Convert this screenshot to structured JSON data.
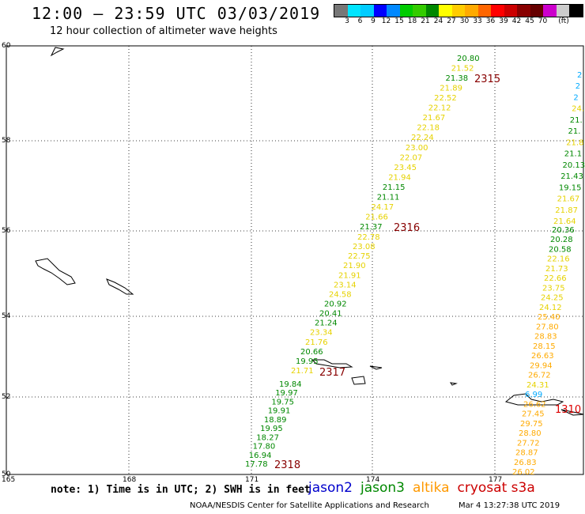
{
  "header": {
    "title": "12:00 – 23:59 UTC 03/03/2019",
    "subtitle": "12 hour collection of altimeter wave heights"
  },
  "legend": {
    "colors": [
      "#777777",
      "#00e5ff",
      "#00ccff",
      "#0000ff",
      "#0088ff",
      "#00cc00",
      "#33cc00",
      "#008800",
      "#ffff00",
      "#ffcc00",
      "#ffaa00",
      "#ff6600",
      "#ff0000",
      "#cc0000",
      "#880000",
      "#660000",
      "#cc00cc",
      "#cccccc",
      "#000000"
    ],
    "labels": [
      "3",
      "6",
      "9",
      "12",
      "15",
      "18",
      "21",
      "24",
      "27",
      "30",
      "33",
      "36",
      "39",
      "42",
      "45",
      "70",
      "(ft)"
    ]
  },
  "axes": {
    "lat_labels": [
      "60",
      "58",
      "56",
      "54",
      "52",
      "50"
    ],
    "lon_labels": [
      "165",
      "168",
      "171",
      "174",
      "177"
    ]
  },
  "tracks": {
    "pass_2315": {
      "label": "2315",
      "values": [
        "20.80",
        "21.52",
        "21.38",
        "21.89",
        "22.52",
        "22.12",
        "21.67",
        "22.18",
        "22.24",
        "23.00",
        "22.07",
        "23.45",
        "21.94",
        "21.15",
        "21.11",
        "24.17",
        "21.66",
        "21.37"
      ]
    },
    "pass_2316": {
      "label": "2316",
      "values": [
        "22.78",
        "23.08",
        "22.75",
        "21.90",
        "21.91",
        "23.14",
        "24.58",
        "20.92",
        "20.41",
        "21.24",
        "23.34",
        "21.76",
        "20.66",
        "19.95",
        "21.71"
      ]
    },
    "pass_2317": {
      "label": "2317"
    },
    "pass_2318": {
      "label": "2318",
      "values": [
        "19.84",
        "19.97",
        "19.75",
        "19.91",
        "18.89",
        "19.95",
        "18.27",
        "17.80",
        "16.94",
        "17.78"
      ]
    },
    "pass_1310": {
      "label": "1310",
      "values": [
        "20.36",
        "20.28",
        "20.58",
        "22.16",
        "21.73",
        "22.66",
        "23.75",
        "24.25",
        "24.12",
        "25.40",
        "27.80",
        "28.83",
        "28.15",
        "26.63",
        "29.94",
        "26.72",
        "24.31",
        "6.99",
        "26.62",
        "27.45",
        "29.75",
        "28.80",
        "27.72",
        "28.87",
        "26.83",
        "26.02"
      ]
    },
    "east_track": {
      "values": [
        "2",
        "2",
        "2",
        "24.",
        "21.",
        "21.",
        "21.8",
        "21.1",
        "20.13",
        "21.43",
        "19.15",
        "21.67",
        "21.87",
        "21.64"
      ]
    }
  },
  "notes": {
    "note": "note: 1) Time is in UTC; 2) SWH is in feet",
    "satellites": [
      {
        "name": "jason2",
        "color": "#0000cc"
      },
      {
        "name": "jason3",
        "color": "#008800"
      },
      {
        "name": "altika",
        "color": "#ff9900"
      },
      {
        "name": "cryosat s3a",
        "color": "#cc0000"
      }
    ]
  },
  "footer": {
    "credit": "NOAA/NESDIS Center for Satellite Applications and Research",
    "timestamp": "Mar  4 13:27:38 UTC 2019"
  }
}
